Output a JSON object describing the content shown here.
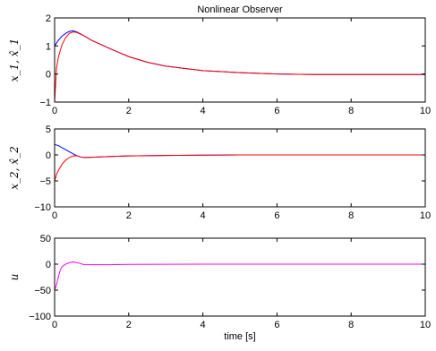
{
  "chart_data": [
    {
      "type": "line",
      "title": "Nonlinear Observer",
      "ylabel": "x_1, x̂_1",
      "xlabel": "",
      "xlim": [
        0,
        10
      ],
      "ylim": [
        -1,
        2
      ],
      "xticks": [
        "0",
        "2",
        "4",
        "6",
        "8",
        "10"
      ],
      "yticks": [
        "−1",
        "0",
        "1",
        "2"
      ],
      "series": [
        {
          "color": "#0000ff",
          "x": [
            0,
            0.1,
            0.2,
            0.3,
            0.4,
            0.5,
            0.6,
            0.8,
            1,
            1.5,
            2,
            2.5,
            3,
            4,
            5,
            6,
            7,
            8,
            9,
            10
          ],
          "y": [
            1.0,
            1.2,
            1.35,
            1.45,
            1.52,
            1.54,
            1.5,
            1.36,
            1.2,
            0.9,
            0.62,
            0.42,
            0.28,
            0.12,
            0.05,
            0.0,
            -0.02,
            -0.02,
            -0.02,
            -0.02
          ]
        },
        {
          "color": "#ff0000",
          "x": [
            0,
            0.05,
            0.1,
            0.2,
            0.3,
            0.4,
            0.5,
            0.6,
            0.8,
            1,
            1.5,
            2,
            2.5,
            3,
            4,
            5,
            6,
            7,
            8,
            9,
            10
          ],
          "y": [
            -1.0,
            0.2,
            0.6,
            1.05,
            1.3,
            1.45,
            1.5,
            1.48,
            1.36,
            1.2,
            0.9,
            0.62,
            0.42,
            0.28,
            0.12,
            0.05,
            0.0,
            -0.02,
            -0.02,
            -0.02,
            -0.02
          ]
        }
      ]
    },
    {
      "type": "line",
      "title": "",
      "ylabel": "x_2, x̂_2",
      "xlabel": "",
      "xlim": [
        0,
        10
      ],
      "ylim": [
        -10,
        5
      ],
      "xticks": [
        "0",
        "2",
        "4",
        "6",
        "8",
        "10"
      ],
      "yticks": [
        "−10",
        "−5",
        "0",
        "5"
      ],
      "series": [
        {
          "color": "#0000ff",
          "x": [
            0,
            0.1,
            0.2,
            0.3,
            0.4,
            0.5,
            0.6,
            0.7,
            0.8,
            1,
            1.5,
            2,
            3,
            4,
            5,
            6,
            7,
            8,
            9,
            10
          ],
          "y": [
            2.0,
            1.8,
            1.4,
            1.0,
            0.6,
            0.2,
            -0.15,
            -0.4,
            -0.5,
            -0.45,
            -0.3,
            -0.2,
            -0.1,
            -0.05,
            0,
            0,
            0,
            0,
            0,
            0
          ]
        },
        {
          "color": "#ff0000",
          "x": [
            0,
            0.05,
            0.1,
            0.2,
            0.3,
            0.4,
            0.5,
            0.6,
            0.7,
            0.8,
            1,
            1.5,
            2,
            3,
            4,
            5,
            6,
            7,
            8,
            9,
            10
          ],
          "y": [
            -5.0,
            -3.8,
            -3.0,
            -1.8,
            -1.0,
            -0.5,
            -0.2,
            -0.15,
            -0.4,
            -0.5,
            -0.45,
            -0.3,
            -0.2,
            -0.1,
            -0.05,
            0,
            0,
            0,
            0,
            0,
            0
          ]
        }
      ]
    },
    {
      "type": "line",
      "title": "",
      "ylabel": "u",
      "xlabel": "time [s]",
      "xlim": [
        0,
        10
      ],
      "ylim": [
        -100,
        50
      ],
      "xticks": [
        "0",
        "2",
        "4",
        "6",
        "8",
        "10"
      ],
      "yticks": [
        "−100",
        "−50",
        "0",
        "50"
      ],
      "series": [
        {
          "color": "#ff00ff",
          "x": [
            0,
            0.05,
            0.1,
            0.15,
            0.2,
            0.3,
            0.4,
            0.5,
            0.6,
            0.7,
            0.8,
            1,
            1.5,
            2,
            3,
            4,
            5,
            6,
            7,
            8,
            9,
            10
          ],
          "y": [
            -50,
            -40,
            -25,
            -12,
            -5,
            0,
            3,
            4,
            3,
            1,
            -1,
            -1,
            -1,
            -0.5,
            -0.3,
            0,
            0,
            0,
            0,
            0,
            0,
            0
          ]
        }
      ]
    }
  ]
}
